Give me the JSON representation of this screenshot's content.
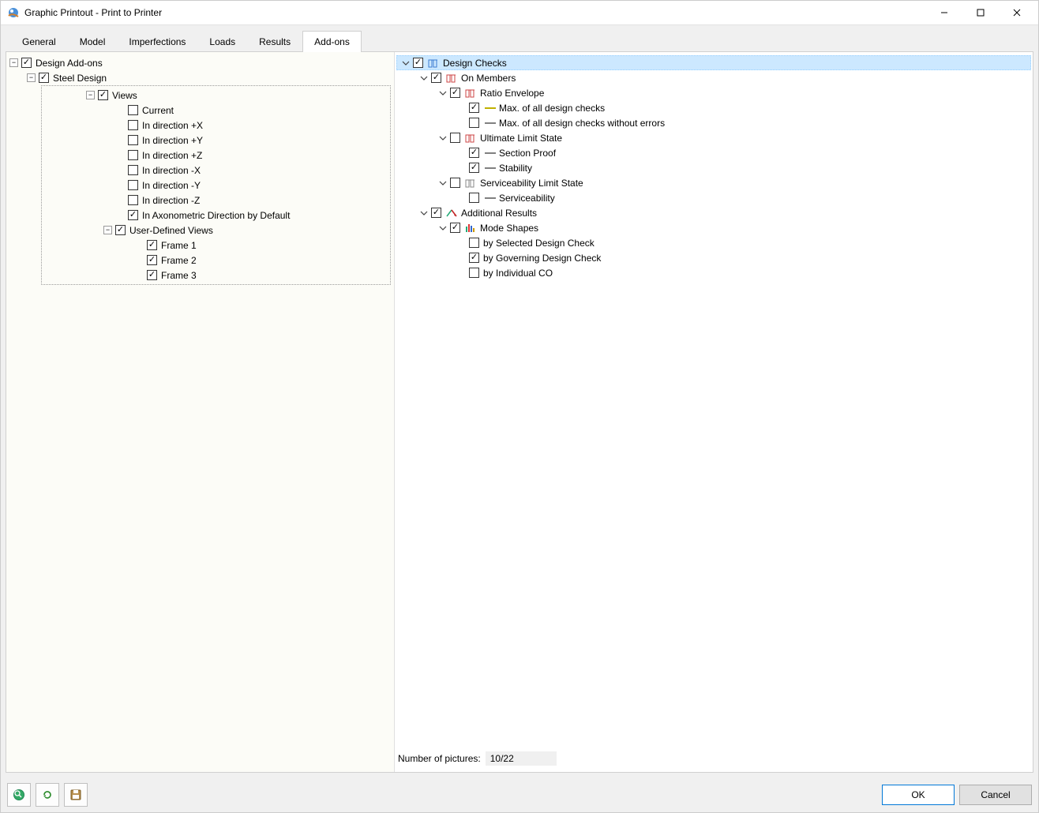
{
  "window": {
    "title": "Graphic Printout - Print to Printer"
  },
  "tabs": [
    "General",
    "Model",
    "Imperfections",
    "Loads",
    "Results",
    "Add-ons"
  ],
  "active_tab": 5,
  "left_tree": {
    "root": {
      "label": "Design Add-ons",
      "checked": true,
      "children": [
        {
          "label": "Steel Design",
          "checked": true,
          "children": [
            {
              "label": "Views",
              "checked": true,
              "is_views_group": true,
              "children": [
                {
                  "label": "Current",
                  "checked": false
                },
                {
                  "label": "In direction +X",
                  "checked": false
                },
                {
                  "label": "In direction +Y",
                  "checked": false
                },
                {
                  "label": "In direction +Z",
                  "checked": false
                },
                {
                  "label": "In direction -X",
                  "checked": false
                },
                {
                  "label": "In direction -Y",
                  "checked": false
                },
                {
                  "label": "In direction -Z",
                  "checked": false
                },
                {
                  "label": "In Axonometric Direction by Default",
                  "checked": true
                },
                {
                  "label": "User-Defined Views",
                  "checked": true,
                  "expandable": true,
                  "children": [
                    {
                      "label": "Frame 1",
                      "checked": true
                    },
                    {
                      "label": "Frame 2",
                      "checked": true
                    },
                    {
                      "label": "Frame 3",
                      "checked": true
                    }
                  ]
                }
              ]
            }
          ]
        }
      ]
    }
  },
  "right_tree": {
    "nodes": [
      {
        "label": "Design Checks",
        "checked": true,
        "highlight": true,
        "icon": "frame-blue",
        "children": [
          {
            "label": "On Members",
            "checked": true,
            "icon": "frame-red",
            "children": [
              {
                "label": "Ratio Envelope",
                "checked": true,
                "icon": "frame-red",
                "children": [
                  {
                    "label": "Max. of all design checks",
                    "checked": true,
                    "line": "#c0b000"
                  },
                  {
                    "label": "Max. of all design checks without errors",
                    "checked": false,
                    "line": "#808080"
                  }
                ]
              },
              {
                "label": "Ultimate Limit State",
                "checked": false,
                "icon": "frame-red-alt",
                "children": [
                  {
                    "label": "Section Proof",
                    "checked": true,
                    "line": "#808080"
                  },
                  {
                    "label": "Stability",
                    "checked": true,
                    "line": "#808080"
                  }
                ]
              },
              {
                "label": "Serviceability Limit State",
                "checked": false,
                "icon": "frame-gray",
                "children": [
                  {
                    "label": "Serviceability",
                    "checked": false,
                    "line": "#808080"
                  }
                ]
              }
            ]
          },
          {
            "label": "Additional Results",
            "checked": true,
            "icon": "arrow-red",
            "children": [
              {
                "label": "Mode Shapes",
                "checked": true,
                "icon": "bars-multi",
                "children": [
                  {
                    "label": "by Selected Design Check",
                    "checked": false
                  },
                  {
                    "label": "by Governing Design Check",
                    "checked": true
                  },
                  {
                    "label": "by Individual CO",
                    "checked": false
                  }
                ]
              }
            ]
          }
        ]
      }
    ]
  },
  "status": {
    "label": "Number of pictures:",
    "value": "10/22"
  },
  "buttons": {
    "ok": "OK",
    "cancel": "Cancel"
  },
  "icons": {
    "frame-blue": "#3b7bd1",
    "frame-red": "#c44",
    "frame-red-alt": "#c44",
    "frame-gray": "#888",
    "arrow-red": "#c02020",
    "bars-multi": "#2a7"
  }
}
